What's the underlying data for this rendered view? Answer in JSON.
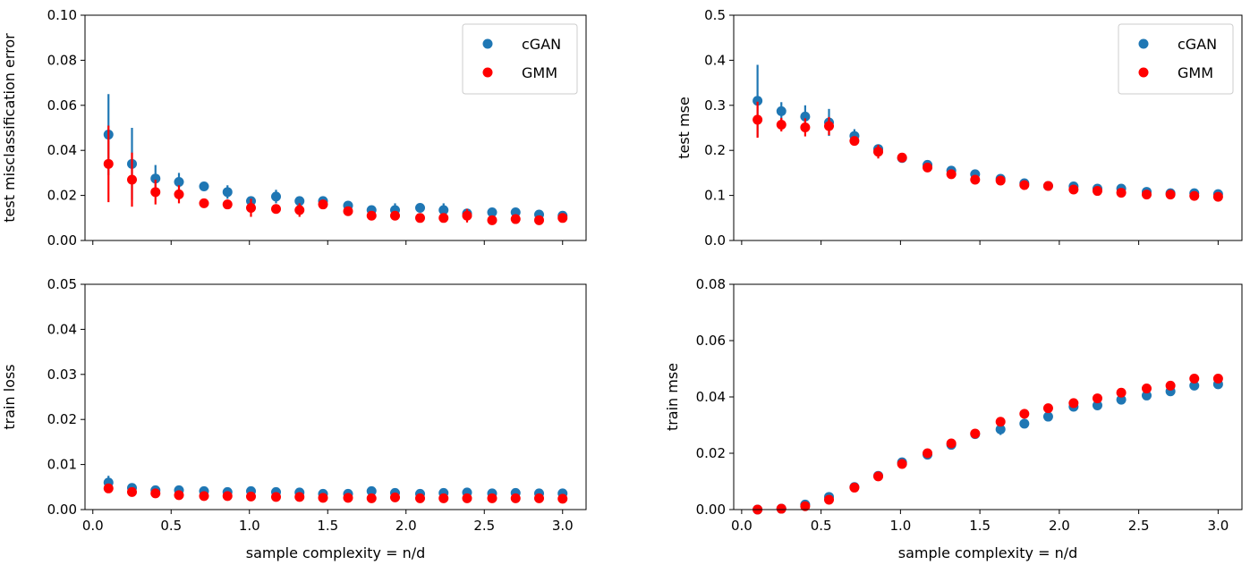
{
  "chart_data": [
    {
      "id": "test-misclassification",
      "type": "scatter",
      "ylabel": "test misclassification error",
      "xlabel": "",
      "xlim": [
        -0.05,
        3.15
      ],
      "ylim": [
        0.0,
        0.1
      ],
      "xticks": [
        "0.0",
        "0.5",
        "1.0",
        "1.5",
        "2.0",
        "2.5",
        "3.0"
      ],
      "show_xtick_labels": false,
      "yticks": [
        "0.00",
        "0.02",
        "0.04",
        "0.06",
        "0.08",
        "0.10"
      ],
      "legend": {
        "position": "top-right",
        "labels": [
          "cGAN",
          "GMM"
        ]
      },
      "x": [
        0.1,
        0.25,
        0.4,
        0.55,
        0.71,
        0.86,
        1.01,
        1.17,
        1.32,
        1.47,
        1.63,
        1.78,
        1.93,
        2.09,
        2.24,
        2.39,
        2.55,
        2.7,
        2.85,
        3.0
      ],
      "series": [
        {
          "name": "cGAN",
          "color": "#1f77b4",
          "values": [
            0.047,
            0.034,
            0.0275,
            0.026,
            0.024,
            0.0215,
            0.0175,
            0.0195,
            0.0175,
            0.0175,
            0.0155,
            0.0135,
            0.0135,
            0.0145,
            0.0135,
            0.012,
            0.0125,
            0.0125,
            0.0115,
            0.011
          ],
          "errors": [
            0.018,
            0.016,
            0.006,
            0.004,
            0.001,
            0.003,
            0.002,
            0.003,
            0.002,
            0.002,
            0.002,
            0.001,
            0.003,
            0.002,
            0.003,
            0.002,
            0.001,
            0.001,
            0.001,
            0.001
          ]
        },
        {
          "name": "GMM",
          "color": "#ff0000",
          "values": [
            0.034,
            0.027,
            0.0215,
            0.0205,
            0.0165,
            0.016,
            0.0145,
            0.014,
            0.0135,
            0.016,
            0.013,
            0.011,
            0.011,
            0.01,
            0.01,
            0.011,
            0.009,
            0.0095,
            0.009,
            0.01
          ],
          "errors": [
            0.017,
            0.012,
            0.0055,
            0.004,
            0.002,
            0.002,
            0.004,
            0.002,
            0.003,
            0.002,
            0.002,
            0.001,
            0.001,
            0.001,
            0.001,
            0.003,
            0.001,
            0.001,
            0.001,
            0.001
          ]
        }
      ]
    },
    {
      "id": "test-mse",
      "type": "scatter",
      "ylabel": "test mse",
      "xlabel": "",
      "xlim": [
        -0.05,
        3.15
      ],
      "ylim": [
        0.0,
        0.5
      ],
      "xticks": [
        "0.0",
        "0.5",
        "1.0",
        "1.5",
        "2.0",
        "2.5",
        "3.0"
      ],
      "show_xtick_labels": false,
      "yticks": [
        "0.0",
        "0.1",
        "0.2",
        "0.3",
        "0.4",
        "0.5"
      ],
      "legend": {
        "position": "top-right",
        "labels": [
          "cGAN",
          "GMM"
        ]
      },
      "x": [
        0.1,
        0.25,
        0.4,
        0.55,
        0.71,
        0.86,
        1.01,
        1.17,
        1.32,
        1.47,
        1.63,
        1.78,
        1.93,
        2.09,
        2.24,
        2.39,
        2.55,
        2.7,
        2.85,
        3.0
      ],
      "series": [
        {
          "name": "cGAN",
          "color": "#1f77b4",
          "values": [
            0.31,
            0.287,
            0.275,
            0.262,
            0.232,
            0.203,
            0.183,
            0.168,
            0.155,
            0.147,
            0.137,
            0.127,
            0.121,
            0.12,
            0.115,
            0.115,
            0.108,
            0.105,
            0.105,
            0.103
          ],
          "errors": [
            0.08,
            0.02,
            0.025,
            0.03,
            0.015,
            0.01,
            0.01,
            0.006,
            0.005,
            0.004,
            0.004,
            0.004,
            0.004,
            0.004,
            0.004,
            0.004,
            0.004,
            0.004,
            0.004,
            0.004
          ]
        },
        {
          "name": "GMM",
          "color": "#ff0000",
          "values": [
            0.268,
            0.257,
            0.251,
            0.254,
            0.221,
            0.197,
            0.184,
            0.162,
            0.147,
            0.135,
            0.133,
            0.123,
            0.121,
            0.113,
            0.11,
            0.106,
            0.102,
            0.102,
            0.099,
            0.097
          ],
          "errors": [
            0.04,
            0.015,
            0.02,
            0.02,
            0.01,
            0.015,
            0.01,
            0.006,
            0.005,
            0.004,
            0.004,
            0.004,
            0.004,
            0.004,
            0.004,
            0.004,
            0.004,
            0.004,
            0.004,
            0.004
          ]
        }
      ]
    },
    {
      "id": "train-loss",
      "type": "scatter",
      "ylabel": "train loss",
      "xlabel": "sample complexity = n/d",
      "xlim": [
        -0.05,
        3.15
      ],
      "ylim": [
        0.0,
        0.05
      ],
      "xticks": [
        "0.0",
        "0.5",
        "1.0",
        "1.5",
        "2.0",
        "2.5",
        "3.0"
      ],
      "show_xtick_labels": true,
      "yticks": [
        "0.00",
        "0.01",
        "0.02",
        "0.03",
        "0.04",
        "0.05"
      ],
      "legend": null,
      "x": [
        0.1,
        0.25,
        0.4,
        0.55,
        0.71,
        0.86,
        1.01,
        1.17,
        1.32,
        1.47,
        1.63,
        1.78,
        1.93,
        2.09,
        2.24,
        2.39,
        2.55,
        2.7,
        2.85,
        3.0
      ],
      "series": [
        {
          "name": "cGAN",
          "color": "#1f77b4",
          "values": [
            0.006,
            0.0048,
            0.0043,
            0.0043,
            0.0041,
            0.0039,
            0.0041,
            0.0039,
            0.0038,
            0.0035,
            0.0035,
            0.0041,
            0.0037,
            0.0035,
            0.0037,
            0.0038,
            0.0036,
            0.0037,
            0.0036,
            0.0036
          ],
          "errors": [
            0.0015,
            0.0004,
            0.0004,
            0.0004,
            0.0003,
            0.0003,
            0.0003,
            0.0003,
            0.0003,
            0.0003,
            0.0003,
            0.0003,
            0.0003,
            0.0003,
            0.0003,
            0.0003,
            0.0003,
            0.0003,
            0.0003,
            0.0003
          ]
        },
        {
          "name": "GMM",
          "color": "#ff0000",
          "values": [
            0.0047,
            0.0039,
            0.0036,
            0.0032,
            0.003,
            0.003,
            0.0029,
            0.0028,
            0.0028,
            0.0026,
            0.0026,
            0.0025,
            0.0027,
            0.0025,
            0.0025,
            0.0025,
            0.0025,
            0.0025,
            0.0025,
            0.0024
          ],
          "errors": [
            0.0003,
            0.0003,
            0.0003,
            0.0003,
            0.0003,
            0.0003,
            0.0003,
            0.0003,
            0.0003,
            0.0003,
            0.0003,
            0.0003,
            0.0003,
            0.0003,
            0.0003,
            0.0003,
            0.0003,
            0.0003,
            0.0003,
            0.0003
          ]
        }
      ]
    },
    {
      "id": "train-mse",
      "type": "scatter",
      "ylabel": "train mse",
      "xlabel": "sample complexity = n/d",
      "xlim": [
        -0.05,
        3.15
      ],
      "ylim": [
        0.0,
        0.08
      ],
      "xticks": [
        "0.0",
        "0.5",
        "1.0",
        "1.5",
        "2.0",
        "2.5",
        "3.0"
      ],
      "show_xtick_labels": true,
      "yticks": [
        "0.00",
        "0.02",
        "0.04",
        "0.06",
        "0.08"
      ],
      "legend": null,
      "x": [
        0.1,
        0.25,
        0.4,
        0.55,
        0.71,
        0.86,
        1.01,
        1.17,
        1.32,
        1.47,
        1.63,
        1.78,
        1.93,
        2.09,
        2.24,
        2.39,
        2.55,
        2.7,
        2.85,
        3.0
      ],
      "series": [
        {
          "name": "cGAN",
          "color": "#1f77b4",
          "values": [
            0.0,
            0.0003,
            0.0018,
            0.0045,
            0.008,
            0.012,
            0.0168,
            0.0195,
            0.023,
            0.0268,
            0.0285,
            0.0305,
            0.033,
            0.0365,
            0.037,
            0.039,
            0.0405,
            0.042,
            0.044,
            0.0445
          ],
          "errors": [
            0.0003,
            0.0003,
            0.0005,
            0.0005,
            0.0005,
            0.0005,
            0.0005,
            0.0008,
            0.0005,
            0.0008,
            0.002,
            0.0005,
            0.0008,
            0.0008,
            0.0005,
            0.0012,
            0.0008,
            0.0005,
            0.0008,
            0.0005
          ]
        },
        {
          "name": "GMM",
          "color": "#ff0000",
          "values": [
            0.0,
            0.0003,
            0.0012,
            0.0035,
            0.0078,
            0.0118,
            0.0162,
            0.02,
            0.0235,
            0.027,
            0.0312,
            0.034,
            0.036,
            0.0378,
            0.0395,
            0.0415,
            0.043,
            0.044,
            0.0465,
            0.0465
          ],
          "errors": [
            0.0003,
            0.0003,
            0.0005,
            0.0005,
            0.0005,
            0.0005,
            0.0005,
            0.0005,
            0.0005,
            0.0005,
            0.0005,
            0.0005,
            0.0005,
            0.0005,
            0.0005,
            0.0005,
            0.0005,
            0.0005,
            0.0005,
            0.0005
          ]
        }
      ]
    }
  ]
}
